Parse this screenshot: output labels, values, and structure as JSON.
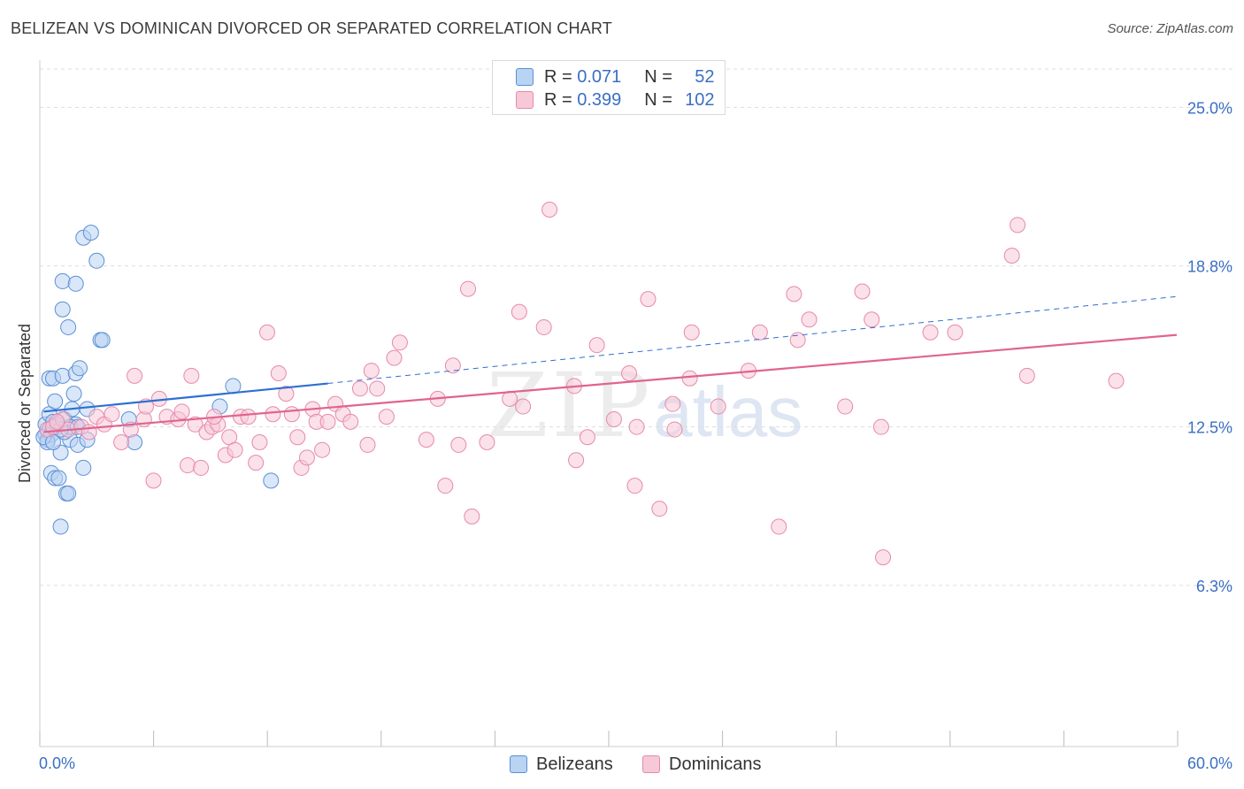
{
  "title": "BELIZEAN VS DOMINICAN DIVORCED OR SEPARATED CORRELATION CHART",
  "source": "Source: ZipAtlas.com",
  "watermark": {
    "zip": "ZIP",
    "atlas": "atlas"
  },
  "colors": {
    "blue_fill": "#b9d3f3",
    "blue_stroke": "#5b8fd6",
    "blue_line": "#2e6fd0",
    "pink_fill": "#f7c8d8",
    "pink_stroke": "#e68aaa",
    "pink_line": "#e0648f",
    "axis_label": "#3a6fc4",
    "grid": "#dddddd"
  },
  "legend": {
    "rows": [
      {
        "r_label": "R =",
        "r_value": "0.071",
        "n_label": "N =",
        "n_value": "52"
      },
      {
        "r_label": "R =",
        "r_value": "0.399",
        "n_label": "N =",
        "n_value": "102"
      }
    ]
  },
  "chart_data": {
    "type": "scatter",
    "title": "BELIZEAN VS DOMINICAN DIVORCED OR SEPARATED CORRELATION CHART",
    "xlabel": "",
    "ylabel": "Divorced or Separated",
    "xlim": [
      0,
      60
    ],
    "ylim": [
      0,
      26.5
    ],
    "x_tick_labels": [
      "0.0%",
      "60.0%"
    ],
    "y_ticks": [
      6.3,
      12.5,
      18.8,
      25.0
    ],
    "y_tick_labels": [
      "6.3%",
      "12.5%",
      "18.8%",
      "25.0%"
    ],
    "series": [
      {
        "name": "Belizeans",
        "r": 0.071,
        "n": 52,
        "trend": {
          "x0": 0.2,
          "y0": 13.1,
          "x1": 15.2,
          "y1": 14.2,
          "dashed_to_x": 60,
          "dashed_to_y": 17.6
        },
        "points": [
          [
            0.3,
            12.6
          ],
          [
            0.3,
            12.2
          ],
          [
            0.4,
            12.0
          ],
          [
            0.5,
            13.0
          ],
          [
            0.5,
            12.4
          ],
          [
            0.6,
            12.2
          ],
          [
            0.4,
            11.9
          ],
          [
            0.7,
            12.7
          ],
          [
            0.5,
            14.4
          ],
          [
            0.7,
            14.4
          ],
          [
            0.8,
            13.5
          ],
          [
            0.9,
            12.5
          ],
          [
            0.6,
            10.7
          ],
          [
            0.8,
            10.5
          ],
          [
            1.0,
            10.5
          ],
          [
            1.1,
            11.5
          ],
          [
            1.2,
            14.5
          ],
          [
            1.3,
            12.8
          ],
          [
            1.2,
            17.1
          ],
          [
            1.2,
            18.2
          ],
          [
            1.5,
            16.4
          ],
          [
            1.6,
            12.0
          ],
          [
            1.7,
            13.2
          ],
          [
            1.8,
            13.8
          ],
          [
            1.9,
            14.6
          ],
          [
            1.9,
            18.1
          ],
          [
            1.9,
            12.6
          ],
          [
            2.0,
            11.8
          ],
          [
            2.1,
            14.8
          ],
          [
            2.3,
            19.9
          ],
          [
            2.3,
            10.9
          ],
          [
            2.5,
            13.2
          ],
          [
            2.5,
            12.0
          ],
          [
            2.7,
            20.1
          ],
          [
            3.0,
            19.0
          ],
          [
            3.2,
            15.9
          ],
          [
            3.3,
            15.9
          ],
          [
            1.4,
            9.9
          ],
          [
            1.5,
            9.9
          ],
          [
            1.1,
            8.6
          ],
          [
            4.7,
            12.8
          ],
          [
            5.0,
            11.9
          ],
          [
            9.5,
            13.3
          ],
          [
            10.2,
            14.1
          ],
          [
            12.2,
            10.4
          ],
          [
            0.9,
            12.6
          ],
          [
            1.3,
            12.3
          ],
          [
            0.2,
            12.1
          ],
          [
            0.7,
            11.9
          ],
          [
            1.6,
            12.5
          ],
          [
            2.0,
            12.5
          ],
          [
            1.1,
            12.4
          ]
        ]
      },
      {
        "name": "Dominicans",
        "r": 0.399,
        "n": 102,
        "trend": {
          "x0": 0.2,
          "y0": 12.3,
          "x1": 60,
          "y1": 16.1
        },
        "points": [
          [
            0.4,
            12.4
          ],
          [
            0.7,
            12.5
          ],
          [
            1.2,
            12.8
          ],
          [
            1.5,
            12.4
          ],
          [
            2.2,
            12.5
          ],
          [
            2.6,
            12.3
          ],
          [
            3.0,
            12.9
          ],
          [
            3.4,
            12.6
          ],
          [
            3.8,
            13.0
          ],
          [
            4.3,
            11.9
          ],
          [
            4.8,
            12.4
          ],
          [
            5.0,
            14.5
          ],
          [
            5.5,
            12.8
          ],
          [
            5.6,
            13.3
          ],
          [
            6.0,
            10.4
          ],
          [
            6.3,
            13.6
          ],
          [
            6.7,
            12.9
          ],
          [
            7.3,
            12.8
          ],
          [
            7.5,
            13.1
          ],
          [
            7.8,
            11.0
          ],
          [
            8.0,
            14.5
          ],
          [
            8.2,
            12.6
          ],
          [
            8.5,
            10.9
          ],
          [
            8.8,
            12.3
          ],
          [
            9.1,
            12.5
          ],
          [
            9.4,
            12.6
          ],
          [
            9.8,
            11.4
          ],
          [
            10.0,
            12.1
          ],
          [
            10.3,
            11.6
          ],
          [
            10.6,
            12.9
          ],
          [
            11.0,
            12.9
          ],
          [
            11.4,
            11.1
          ],
          [
            11.6,
            11.9
          ],
          [
            12.0,
            16.2
          ],
          [
            12.3,
            13.0
          ],
          [
            12.6,
            14.6
          ],
          [
            13.0,
            13.8
          ],
          [
            13.3,
            13.0
          ],
          [
            13.6,
            12.1
          ],
          [
            13.8,
            10.9
          ],
          [
            14.1,
            11.3
          ],
          [
            14.4,
            13.2
          ],
          [
            14.6,
            12.7
          ],
          [
            14.9,
            11.6
          ],
          [
            15.2,
            12.7
          ],
          [
            15.6,
            13.4
          ],
          [
            16.0,
            13.0
          ],
          [
            16.4,
            12.7
          ],
          [
            16.9,
            14.0
          ],
          [
            17.3,
            11.8
          ],
          [
            17.5,
            14.7
          ],
          [
            17.8,
            14.0
          ],
          [
            18.3,
            12.9
          ],
          [
            18.7,
            15.2
          ],
          [
            19.0,
            15.8
          ],
          [
            20.4,
            12.0
          ],
          [
            21.0,
            13.6
          ],
          [
            21.4,
            10.2
          ],
          [
            21.8,
            14.9
          ],
          [
            22.1,
            11.8
          ],
          [
            22.6,
            17.9
          ],
          [
            22.8,
            9.0
          ],
          [
            23.6,
            11.9
          ],
          [
            24.8,
            13.6
          ],
          [
            25.3,
            17.0
          ],
          [
            25.5,
            13.3
          ],
          [
            26.6,
            16.4
          ],
          [
            26.9,
            21.0
          ],
          [
            28.2,
            14.1
          ],
          [
            28.3,
            11.2
          ],
          [
            28.9,
            12.1
          ],
          [
            29.4,
            15.7
          ],
          [
            30.3,
            12.8
          ],
          [
            31.1,
            14.6
          ],
          [
            31.4,
            10.2
          ],
          [
            31.5,
            12.5
          ],
          [
            32.1,
            17.5
          ],
          [
            32.7,
            9.3
          ],
          [
            33.4,
            13.4
          ],
          [
            33.5,
            12.4
          ],
          [
            34.4,
            16.2
          ],
          [
            34.3,
            14.4
          ],
          [
            35.8,
            13.3
          ],
          [
            37.4,
            14.7
          ],
          [
            38.0,
            16.2
          ],
          [
            39.0,
            8.6
          ],
          [
            39.8,
            17.7
          ],
          [
            40.0,
            15.9
          ],
          [
            40.6,
            16.7
          ],
          [
            42.5,
            13.3
          ],
          [
            43.4,
            17.8
          ],
          [
            43.9,
            16.7
          ],
          [
            44.5,
            7.4
          ],
          [
            44.4,
            12.5
          ],
          [
            47.0,
            16.2
          ],
          [
            48.3,
            16.2
          ],
          [
            51.3,
            19.2
          ],
          [
            51.6,
            20.4
          ],
          [
            52.1,
            14.5
          ],
          [
            56.8,
            14.3
          ],
          [
            9.2,
            12.9
          ],
          [
            0.9,
            12.7
          ]
        ]
      }
    ]
  }
}
